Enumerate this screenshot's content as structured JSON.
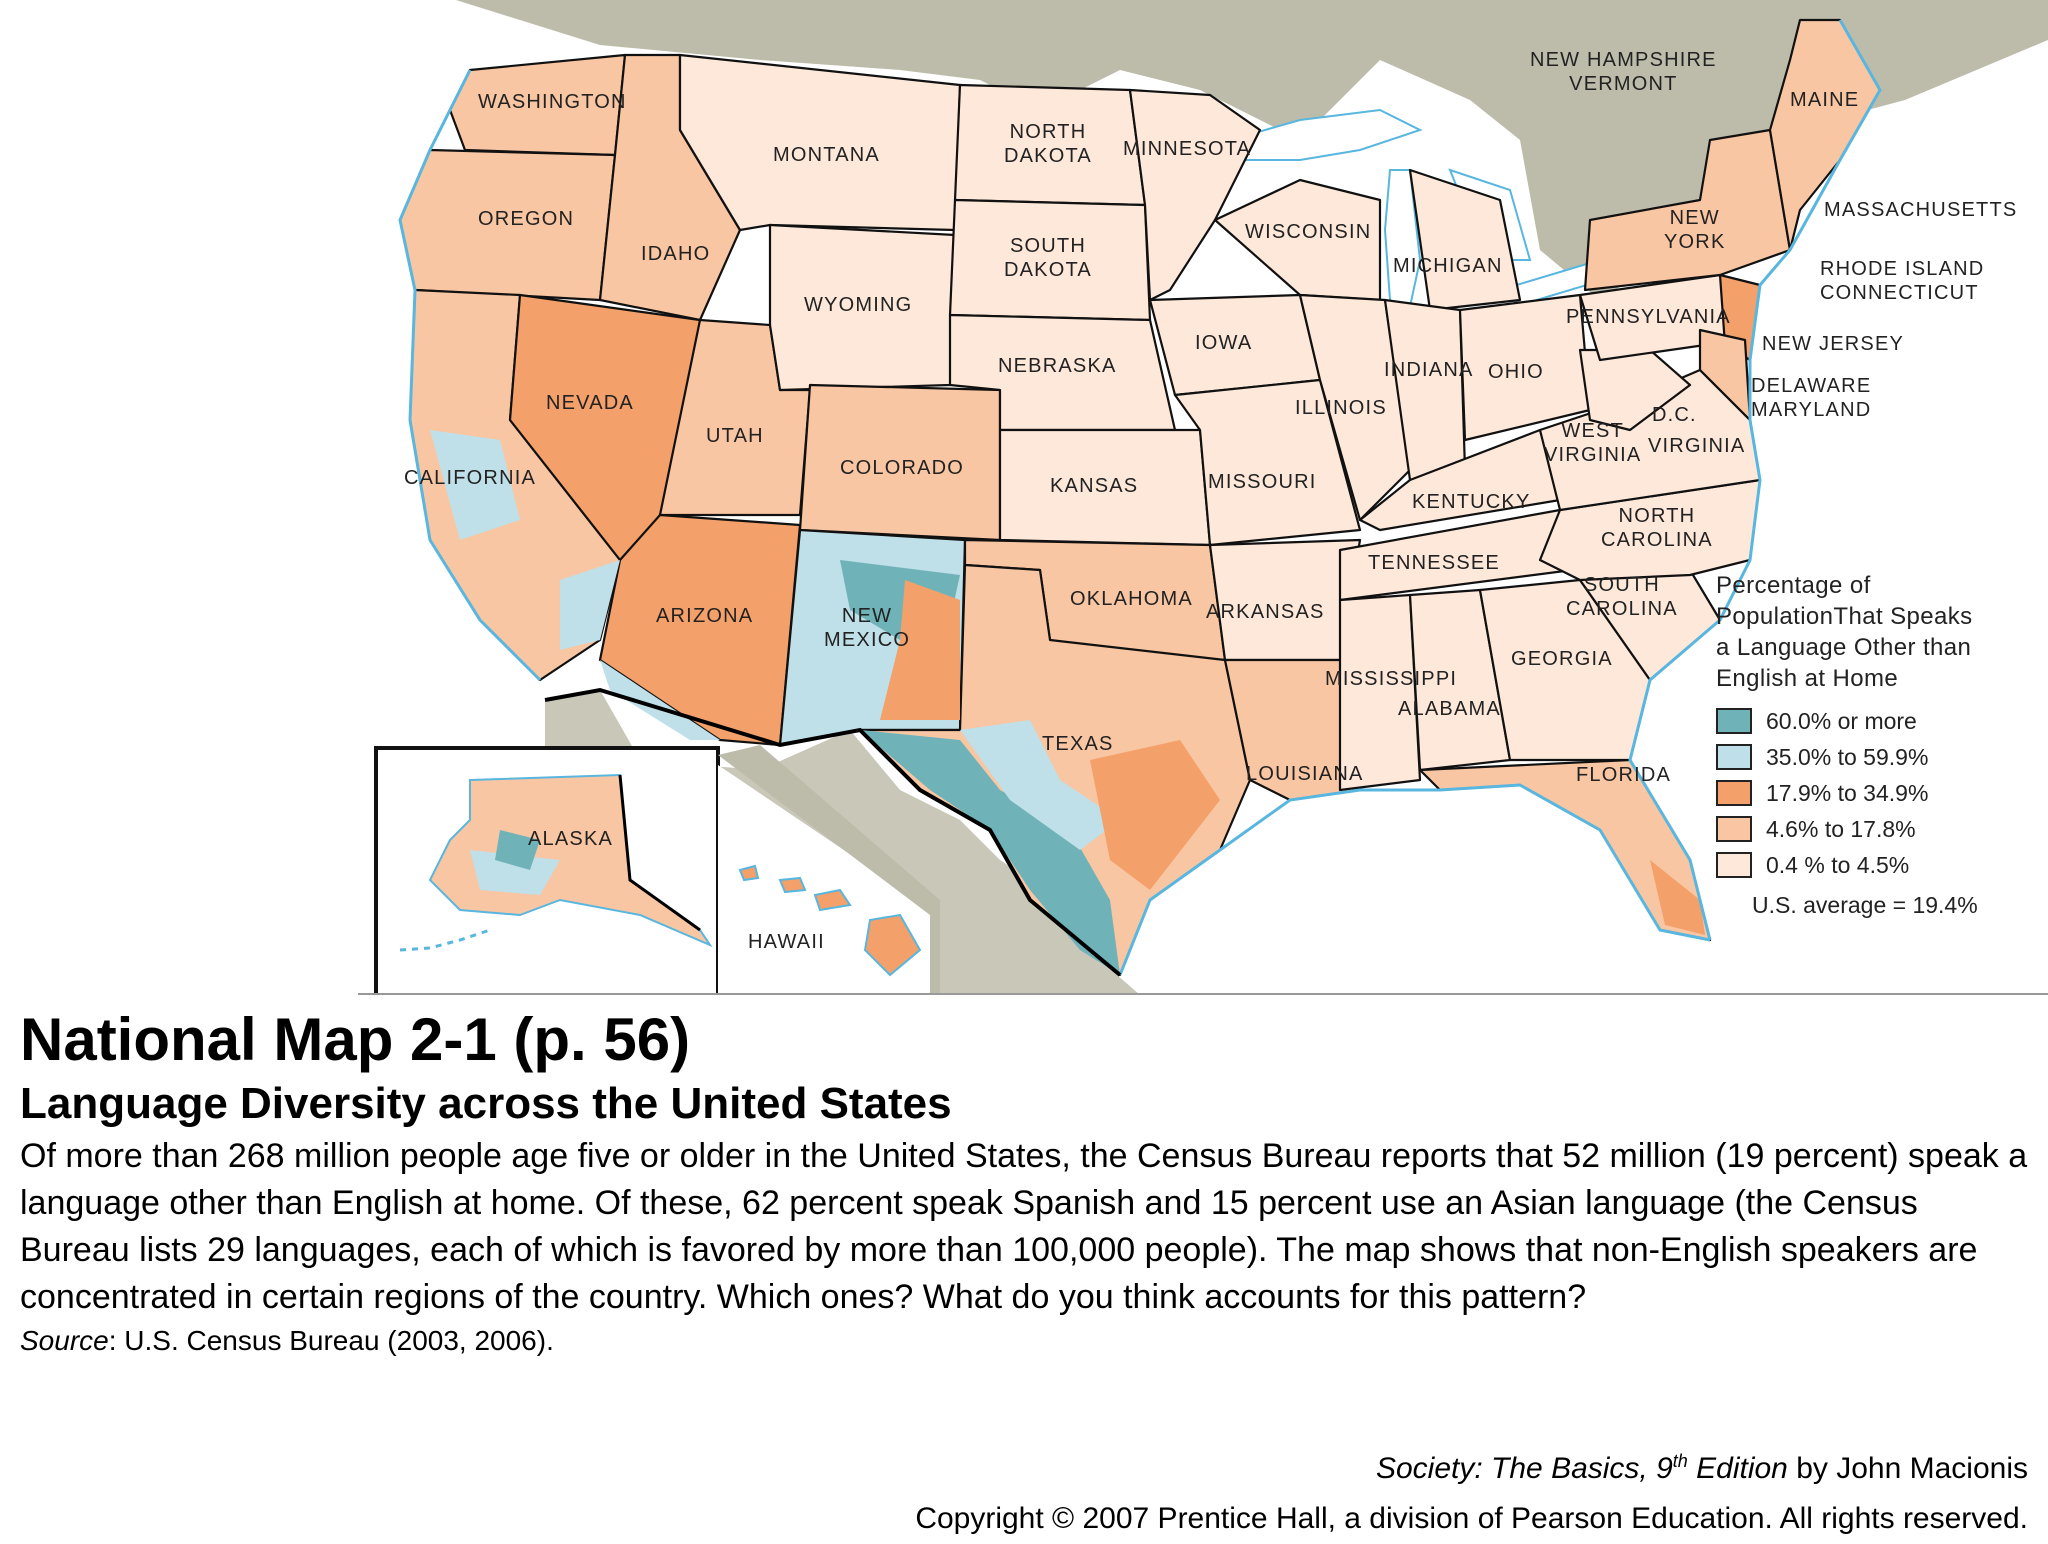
{
  "map": {
    "states": [
      "Washington",
      "Oregon",
      "California",
      "Idaho",
      "Montana",
      "Nevada",
      "Utah",
      "Wyoming",
      "Arizona",
      "Colorado",
      "New Mexico",
      "North Dakota",
      "South Dakota",
      "Nebraska",
      "Kansas",
      "Oklahoma",
      "Texas",
      "Minnesota",
      "Iowa",
      "Missouri",
      "Arkansas",
      "Louisiana",
      "Wisconsin",
      "Illinois",
      "Michigan",
      "Indiana",
      "Ohio",
      "Kentucky",
      "Tennessee",
      "Mississippi",
      "Alabama",
      "Georgia",
      "Florida",
      "South Carolina",
      "North Carolina",
      "Virginia",
      "West Virginia",
      "Pennsylvania",
      "New York",
      "New Hampshire",
      "Vermont",
      "Maine",
      "Massachusetts",
      "Rhode Island",
      "Connecticut",
      "New Jersey",
      "Delaware",
      "Maryland",
      "D.C.",
      "Alaska",
      "Hawaii"
    ],
    "colors": {
      "level_60_plus": "#6fb3b9",
      "level_35_60": "#bfe0e8",
      "level_18_35": "#f4a06a",
      "level_5_18": "#f9c6a3",
      "level_0_5": "#fde8da",
      "canada": "#bdbcaa",
      "mexico": "#c8c7b8",
      "water": "#ffffff",
      "coast": "#58b6df"
    }
  },
  "legend": {
    "title": "Percentage of\nPopulationThat Speaks\na Language Other than\nEnglish at Home",
    "items": [
      {
        "label": "60.0% or more",
        "color": "#6fb3b9"
      },
      {
        "label": "35.0% to 59.9%",
        "color": "#bfe0e8"
      },
      {
        "label": "17.9% to 34.9%",
        "color": "#f4a06a"
      },
      {
        "label": "4.6% to 17.8%",
        "color": "#f9c6a3"
      },
      {
        "label": "0.4 % to 4.5%",
        "color": "#fde8da"
      }
    ],
    "average": "U.S. average = 19.4%"
  },
  "caption": {
    "title": "National Map 2-1  (p. 56)",
    "subtitle": "Language Diversity across the United States",
    "body": "Of more than 268 million people age five or older in the United States, the Census Bureau reports that 52 million (19 percent) speak a language other than English at home. Of these, 62 percent speak Spanish and 15 percent use an Asian language (the Census Bureau lists 29 languages, each of which is favored by more than 100,000 people). The map shows that non-English speakers are concentrated in certain regions of the country. Which ones? What do you think accounts for this pattern?",
    "source_label": "Source",
    "source_text": ": U.S. Census Bureau (2003, 2006)."
  },
  "credit": {
    "book": "Society: The Basics, 9",
    "edition_sup": "th",
    "edition_word": " Edition",
    "author": " by John Macionis",
    "copyright": "Copyright © 2007 Prentice Hall, a division of Pearson Education. All rights reserved."
  },
  "labels": {
    "washington": "WASHINGTON",
    "oregon": "OREGON",
    "california": "CALIFORNIA",
    "idaho": "IDAHO",
    "montana": "MONTANA",
    "nevada": "NEVADA",
    "utah": "UTAH",
    "wyoming": "WYOMING",
    "arizona": "ARIZONA",
    "colorado": "COLORADO",
    "new_mexico": "NEW\nMEXICO",
    "north_dakota": "NORTH\nDAKOTA",
    "south_dakota": "SOUTH\nDAKOTA",
    "nebraska": "NEBRASKA",
    "kansas": "KANSAS",
    "oklahoma": "OKLAHOMA",
    "texas": "TEXAS",
    "minnesota": "MINNESOTA",
    "iowa": "IOWA",
    "missouri": "MISSOURI",
    "arkansas": "ARKANSAS",
    "louisiana": "LOUISIANA",
    "wisconsin": "WISCONSIN",
    "illinois": "ILLINOIS",
    "michigan": "MICHIGAN",
    "indiana": "INDIANA",
    "ohio": "OHIO",
    "kentucky": "KENTUCKY",
    "tennessee": "TENNESSEE",
    "mississippi": "MISSISSIPPI",
    "alabama": "ALABAMA",
    "georgia": "GEORGIA",
    "florida": "FLORIDA",
    "south_carolina": "SOUTH\nCAROLINA",
    "north_carolina": "NORTH\nCAROLINA",
    "virginia": "VIRGINIA",
    "west_virginia": "WEST\nVIRGINIA",
    "pennsylvania": "PENNSYLVANIA",
    "new_york": "NEW\nYORK",
    "nh_vt": "NEW HAMPSHIRE\nVERMONT",
    "maine": "MAINE",
    "massachusetts": "MASSACHUSETTS",
    "ri_ct": "RHODE ISLAND\nCONNECTICUT",
    "new_jersey": "NEW JERSEY",
    "de_md": "DELAWARE\nMARYLAND",
    "dc": "D.C.",
    "alaska": "ALASKA",
    "hawaii": "HAWAII"
  }
}
